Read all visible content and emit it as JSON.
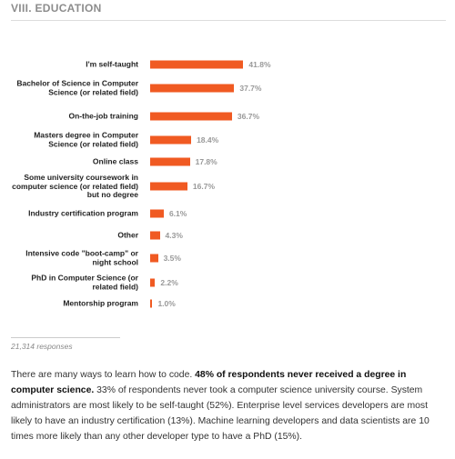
{
  "chart_data": {
    "type": "bar",
    "orientation": "horizontal",
    "title": "VIII. EDUCATION",
    "categories": [
      "I'm self-taught",
      "Bachelor of Science in Computer Science (or related field)",
      "On-the-job training",
      "Masters degree in Computer Science (or related field)",
      "Online class",
      "Some university coursework in computer science (or related field) but no degree",
      "Industry certification program",
      "Other",
      "Intensive code \"boot-camp\" or night school",
      "PhD in Computer Science (or related field)",
      "Mentorship program"
    ],
    "values": [
      41.8,
      37.7,
      36.7,
      18.4,
      17.8,
      16.7,
      6.1,
      4.3,
      3.5,
      2.2,
      1.0
    ],
    "value_labels": [
      "41.8%",
      "37.7%",
      "36.7%",
      "18.4%",
      "17.8%",
      "16.7%",
      "6.1%",
      "4.3%",
      "3.5%",
      "2.2%",
      "1.0%"
    ],
    "color": "#f05a22",
    "responses": "21,314 responses"
  },
  "note": {
    "segments": [
      {
        "text": "There are many ways to learn how to code. ",
        "bold": false
      },
      {
        "text": "48% of respondents never received a degree in computer science.",
        "bold": true
      },
      {
        "text": " 33% of respondents never took a computer science university course. System administrators are most likely to be self-taught (52%). Enterprise level services developers are most likely to have an industry certification (13%). Machine learning developers and data scientists are 10 times more likely than any other developer type to have a PhD (15%).",
        "bold": false
      }
    ]
  }
}
